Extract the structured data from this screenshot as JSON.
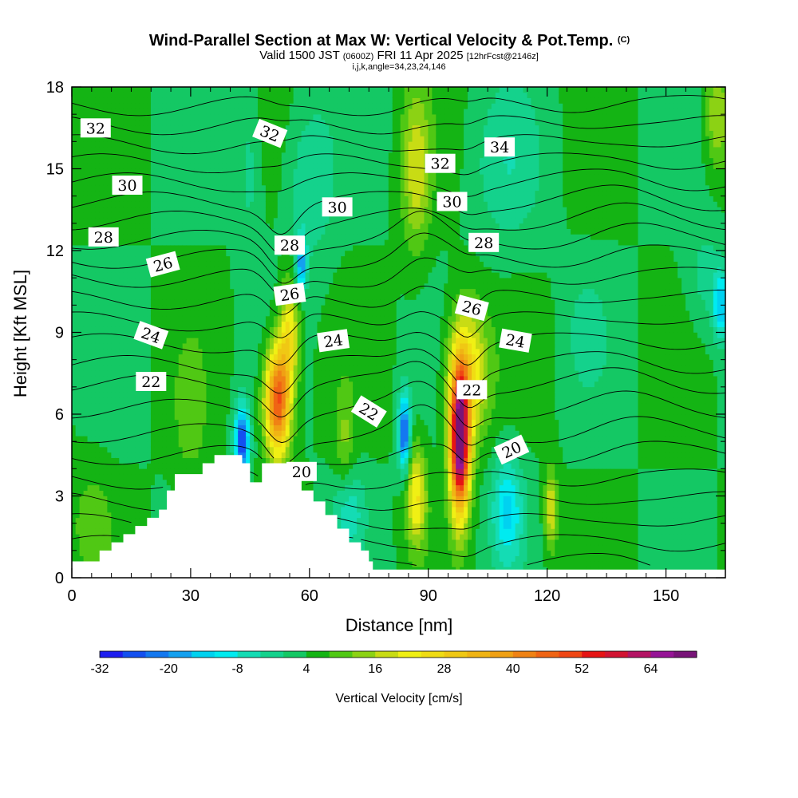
{
  "chart_data": {
    "type": "heatmap",
    "title": "Wind-Parallel Section at Max W: Vertical Velocity & Pot.Temp.",
    "title_mark": "(C)",
    "subtitle": {
      "part1": "Valid 1500 JST",
      "part2": "(0600Z)",
      "part3": "FRI 11 Apr 2025",
      "part4": "[12hrFcst@2146z]"
    },
    "index_line": "i,j,k,angle=34,23,24,146",
    "xlabel": "Distance [nm]",
    "ylabel": "Height [Kft MSL]",
    "xlim": [
      0,
      165
    ],
    "ylim": [
      0,
      18
    ],
    "x_ticks": [
      0,
      30,
      60,
      90,
      120,
      150
    ],
    "y_ticks": [
      0,
      3,
      6,
      9,
      12,
      15,
      18
    ],
    "colorbar": {
      "label": "Vertical Velocity [cm/s]",
      "ticks": [
        "-32",
        "-20",
        "-8",
        "4",
        "16",
        "28",
        "40",
        "52",
        "64"
      ],
      "colors": [
        "#1e1ef0",
        "#1450f0",
        "#1478f0",
        "#14a0f0",
        "#00d2f0",
        "#00ebf0",
        "#14dcb4",
        "#14d28c",
        "#14c864",
        "#14b414",
        "#50c814",
        "#8cd214",
        "#c8dc14",
        "#f0f014",
        "#f0dc14",
        "#f0c814",
        "#f0b414",
        "#f0a014",
        "#f08214",
        "#f06414",
        "#f04614",
        "#e61414",
        "#d21432",
        "#b41464",
        "#961496",
        "#781478"
      ]
    },
    "w_cells": [
      {
        "x": 98,
        "y": 5.0,
        "w": 68,
        "sx": 2.4,
        "sy": 2.6
      },
      {
        "x": 100,
        "y": 7.5,
        "w": 22,
        "sx": 5.0,
        "sy": 2.5
      },
      {
        "x": 52,
        "y": 6.5,
        "w": 46,
        "sx": 3.2,
        "sy": 2.0
      },
      {
        "x": 55,
        "y": 9.0,
        "w": 20,
        "sx": 2.5,
        "sy": 2.0
      },
      {
        "x": 87,
        "y": 3.0,
        "w": 20,
        "sx": 2.5,
        "sy": 1.8
      },
      {
        "x": 87,
        "y": 15.0,
        "w": 14,
        "sx": 3.5,
        "sy": 3.0
      },
      {
        "x": 121,
        "y": 2.5,
        "w": 16,
        "sx": 1.6,
        "sy": 1.5
      },
      {
        "x": 69,
        "y": 5.0,
        "w": 8,
        "sx": 2.5,
        "sy": 2.0
      },
      {
        "x": 163,
        "y": 17.0,
        "w": 12,
        "sx": 3.0,
        "sy": 2.0
      },
      {
        "x": 43,
        "y": 5.0,
        "w": -32,
        "sx": 1.8,
        "sy": 1.3
      },
      {
        "x": 84,
        "y": 5.3,
        "w": -30,
        "sx": 1.5,
        "sy": 1.4
      },
      {
        "x": 58,
        "y": 11.5,
        "w": -22,
        "sx": 1.3,
        "sy": 1.0
      },
      {
        "x": 110,
        "y": 2.5,
        "w": -16,
        "sx": 4.0,
        "sy": 2.0
      },
      {
        "x": 70,
        "y": 2.5,
        "w": -10,
        "sx": 4.0,
        "sy": 1.5
      },
      {
        "x": 60,
        "y": 14.5,
        "w": -8,
        "sx": 6.0,
        "sy": 3.0
      },
      {
        "x": 110,
        "y": 15.0,
        "w": -6,
        "sx": 9.0,
        "sy": 3.0
      },
      {
        "x": 164,
        "y": 10.0,
        "w": -18,
        "sx": 2.0,
        "sy": 1.2
      },
      {
        "x": 160,
        "y": 11.0,
        "w": -6,
        "sx": 5.0,
        "sy": 2.0
      },
      {
        "x": 130,
        "y": 9.0,
        "w": -5,
        "sx": 5.0,
        "sy": 2.0
      },
      {
        "x": 45,
        "y": 15.0,
        "w": -6,
        "sx": 3.0,
        "sy": 3.0
      },
      {
        "x": 30,
        "y": 6.0,
        "w": 6,
        "sx": 4.0,
        "sy": 2.5
      },
      {
        "x": 5,
        "y": 2.0,
        "w": 6,
        "sx": 5.0,
        "sy": 2.0
      }
    ],
    "terrain": [
      [
        0,
        0.6
      ],
      [
        6,
        0.6
      ],
      [
        7,
        1.0
      ],
      [
        10,
        1.3
      ],
      [
        13,
        1.6
      ],
      [
        16,
        1.9
      ],
      [
        19,
        2.2
      ],
      [
        22,
        2.5
      ],
      [
        24,
        3.2
      ],
      [
        26,
        3.8
      ],
      [
        32,
        3.8
      ],
      [
        33,
        4.2
      ],
      [
        36,
        4.5
      ],
      [
        42,
        4.5
      ],
      [
        43,
        4.2
      ],
      [
        45,
        3.5
      ],
      [
        47,
        3.5
      ],
      [
        48,
        4.2
      ],
      [
        52,
        4.2
      ],
      [
        55,
        3.8
      ],
      [
        58,
        3.2
      ],
      [
        61,
        2.8
      ],
      [
        64,
        2.3
      ],
      [
        67,
        1.8
      ],
      [
        70,
        1.3
      ],
      [
        73,
        1.0
      ],
      [
        75,
        0.6
      ],
      [
        76,
        0.3
      ],
      [
        165,
        0.3
      ]
    ],
    "isentropes": [
      {
        "base": 0.4,
        "label": null
      },
      {
        "base": 1.2,
        "label": null
      },
      {
        "base": 2.0,
        "label": null
      },
      {
        "base": 2.8,
        "label": null
      },
      {
        "base": 3.6,
        "label": null
      },
      {
        "base": 4.5,
        "label": null
      },
      {
        "base": 5.3,
        "label": null
      },
      {
        "base": 6.2,
        "label": null
      },
      {
        "base": 7.1,
        "label": "22",
        "lx": 20,
        "ly": 7.2,
        "rot": 0
      },
      {
        "base": 7.8,
        "label": "20",
        "lx": 58,
        "ly": 3.9,
        "rot": 0
      },
      {
        "base": 8.6,
        "label": "24",
        "lx": 20,
        "ly": 8.9,
        "rot": 20
      },
      {
        "base": 9.4,
        "label": null
      },
      {
        "base": 10.2,
        "label": "22",
        "lx": 75,
        "ly": 6.1,
        "rot": 32
      },
      {
        "base": 11.0,
        "label": "24",
        "lx": 66,
        "ly": 8.7,
        "rot": -8
      },
      {
        "base": 11.7,
        "label": "26",
        "lx": 23,
        "ly": 11.5,
        "rot": -15
      },
      {
        "base": 12.4,
        "label": null
      },
      {
        "base": 13.1,
        "label": "28",
        "lx": 8,
        "ly": 12.5,
        "rot": 0
      },
      {
        "base": 13.8,
        "label": null
      },
      {
        "base": 14.5,
        "label": "30",
        "lx": 14,
        "ly": 14.4,
        "rot": 0
      },
      {
        "base": 15.2,
        "label": null
      },
      {
        "base": 15.9,
        "label": null
      },
      {
        "base": 16.6,
        "label": "32",
        "lx": 6,
        "ly": 16.5,
        "rot": 0
      },
      {
        "base": 17.3,
        "label": null
      }
    ],
    "extra_labels": [
      {
        "text": "32",
        "x": 50,
        "y": 16.3,
        "rot": 22
      },
      {
        "text": "28",
        "x": 55,
        "y": 12.2,
        "rot": 0
      },
      {
        "text": "26",
        "x": 55,
        "y": 10.4,
        "rot": -8
      },
      {
        "text": "30",
        "x": 67,
        "y": 13.6,
        "rot": 0
      },
      {
        "text": "32",
        "x": 93,
        "y": 15.2,
        "rot": 0
      },
      {
        "text": "30",
        "x": 96,
        "y": 13.8,
        "rot": 0
      },
      {
        "text": "34",
        "x": 108,
        "y": 15.8,
        "rot": 0
      },
      {
        "text": "28",
        "x": 104,
        "y": 12.3,
        "rot": 0
      },
      {
        "text": "26",
        "x": 101,
        "y": 9.9,
        "rot": 15
      },
      {
        "text": "24",
        "x": 112,
        "y": 8.7,
        "rot": 10
      },
      {
        "text": "22",
        "x": 101,
        "y": 6.9,
        "rot": 0
      },
      {
        "text": "20",
        "x": 111,
        "y": 4.7,
        "rot": -25
      }
    ]
  }
}
